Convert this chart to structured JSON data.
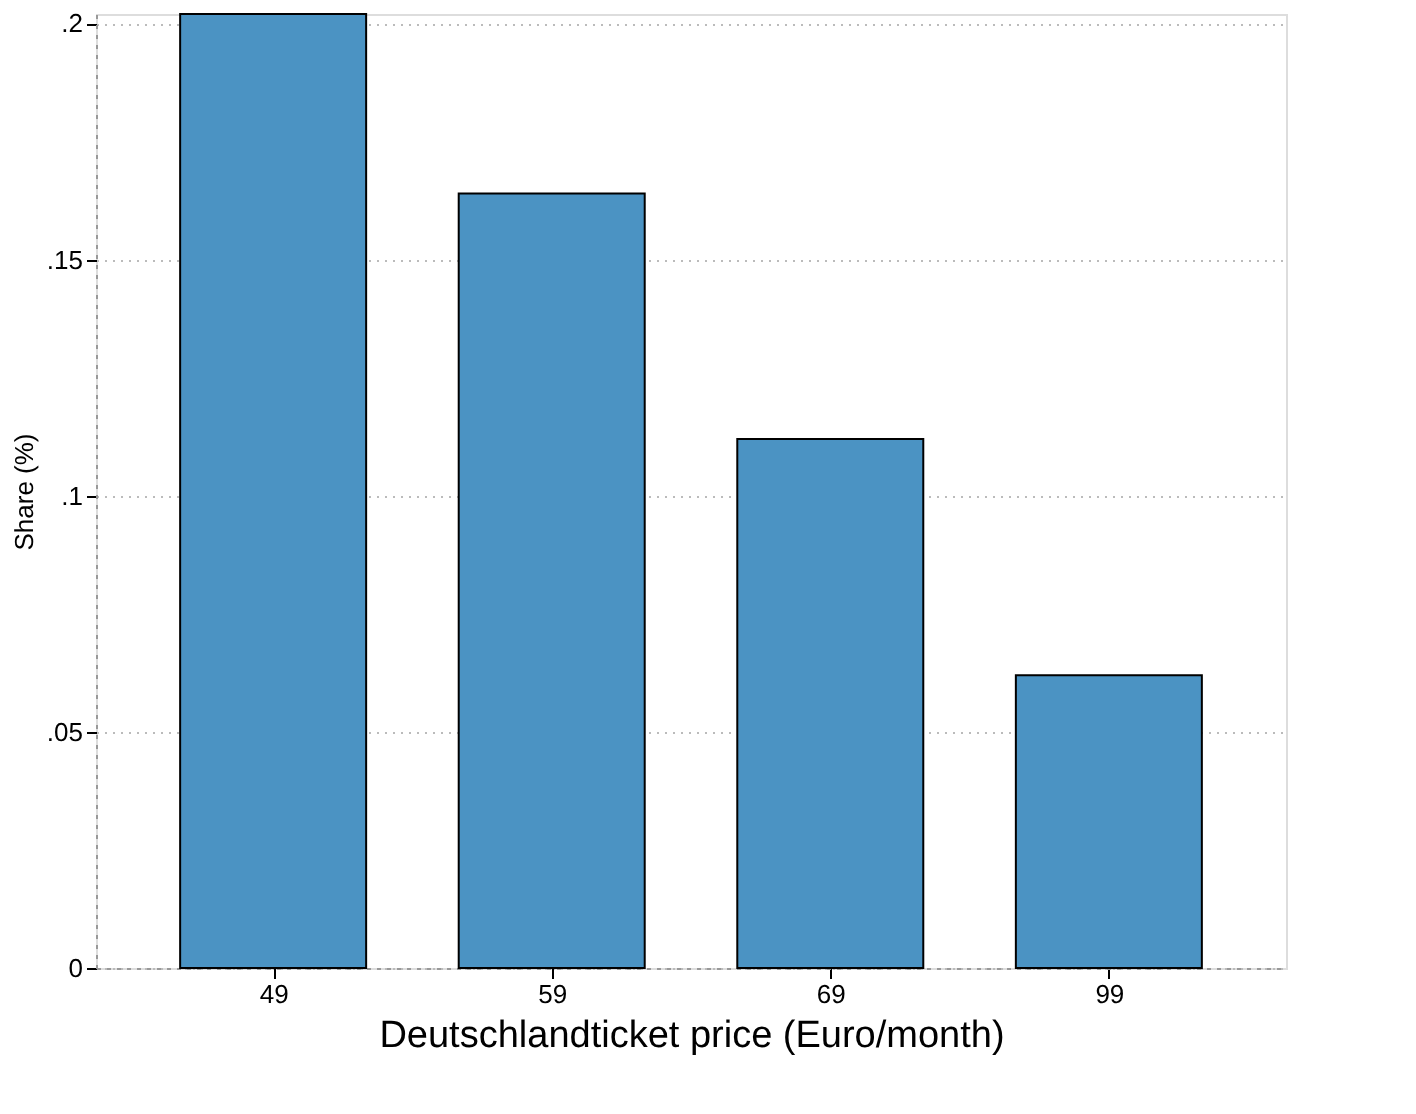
{
  "chart_data": {
    "type": "bar",
    "categories": [
      "49",
      "59",
      "69",
      "99"
    ],
    "values": [
      0.202,
      0.164,
      0.112,
      0.062
    ],
    "color": "#4b93c3",
    "xlabel": "Deutschlandticket price (Euro/month)",
    "ylabel": "Share (%)",
    "ylim": [
      0,
      0.202
    ],
    "yticks": [
      {
        "value": 0,
        "label": "0"
      },
      {
        "value": 0.05,
        "label": ".05"
      },
      {
        "value": 0.1,
        "label": ".1"
      },
      {
        "value": 0.15,
        "label": ".15"
      },
      {
        "value": 0.2,
        "label": ".2"
      }
    ],
    "grid": "y"
  }
}
